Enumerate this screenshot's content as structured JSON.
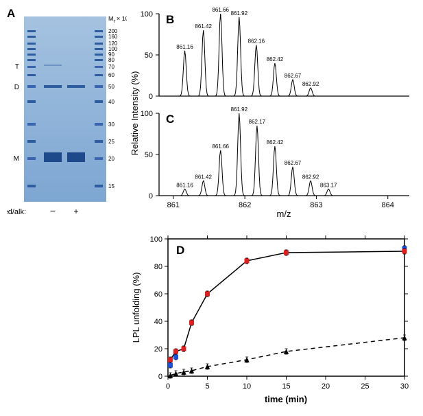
{
  "panelA": {
    "label": "A",
    "label_fontsize": 17,
    "mr_label": "M_r × 10⁻³",
    "mr_fontsize": 10,
    "ladder_values": [
      "200",
      "160",
      "120",
      "100",
      "90",
      "80",
      "70",
      "60",
      "50",
      "40",
      "30",
      "25",
      "20",
      "15"
    ],
    "side_labels": [
      "T",
      "D",
      "M"
    ],
    "redalk_label": "red/alk:",
    "redalk_values": [
      "−",
      "+"
    ],
    "gel_bg": "#87add6",
    "band_color": "#2e5d9f",
    "ladder_lane_color": "#3a65b0",
    "gel_width": 120,
    "gel_height": 265,
    "tick_fontsize": 8
  },
  "panelB": {
    "label": "B",
    "type": "mass-spectrum",
    "ylabel": "Relative Intensity (%)",
    "ylim": [
      0,
      100
    ],
    "yticks": [
      0,
      50,
      100
    ],
    "xlim": [
      860.8,
      864.3
    ],
    "peaks": [
      {
        "mz": 861.16,
        "intensity": 55,
        "label": "861.16"
      },
      {
        "mz": 861.42,
        "intensity": 80,
        "label": "861.42"
      },
      {
        "mz": 861.66,
        "intensity": 100,
        "label": "861.66"
      },
      {
        "mz": 861.92,
        "intensity": 96,
        "label": "861.92"
      },
      {
        "mz": 862.16,
        "intensity": 62,
        "label": "862.16"
      },
      {
        "mz": 862.42,
        "intensity": 40,
        "label": "862.42"
      },
      {
        "mz": 862.67,
        "intensity": 20,
        "label": "862.67"
      },
      {
        "mz": 862.92,
        "intensity": 10,
        "label": "862.92"
      }
    ],
    "line_color": "#000000",
    "label_fontsize": 8
  },
  "panelC": {
    "label": "C",
    "type": "mass-spectrum",
    "xlabel": "m/z",
    "ylim": [
      0,
      100
    ],
    "yticks": [
      0,
      50,
      100
    ],
    "xlim": [
      860.8,
      864.3
    ],
    "xticks": [
      861,
      862,
      863,
      864
    ],
    "peaks": [
      {
        "mz": 861.16,
        "intensity": 8,
        "label": "861.16"
      },
      {
        "mz": 861.42,
        "intensity": 18,
        "label": "861.42"
      },
      {
        "mz": 861.66,
        "intensity": 55,
        "label": "861.66"
      },
      {
        "mz": 861.92,
        "intensity": 100,
        "label": "861.92"
      },
      {
        "mz": 862.17,
        "intensity": 85,
        "label": "862.17"
      },
      {
        "mz": 862.42,
        "intensity": 60,
        "label": "862.42"
      },
      {
        "mz": 862.67,
        "intensity": 35,
        "label": "862.67"
      },
      {
        "mz": 862.92,
        "intensity": 18,
        "label": "862.92"
      },
      {
        "mz": 863.17,
        "intensity": 8,
        "label": "863.17"
      }
    ],
    "line_color": "#000000",
    "label_fontsize": 8
  },
  "panelD": {
    "label": "D",
    "type": "line",
    "ylabel": "LPL unfolding (%)",
    "xlabel": "time (min)",
    "xlim": [
      0,
      30
    ],
    "ylim": [
      0,
      100
    ],
    "xticks": [
      0,
      5,
      10,
      15,
      20,
      25,
      30
    ],
    "yticks": [
      0,
      20,
      40,
      60,
      80,
      100
    ],
    "series": [
      {
        "name": "blue-squares",
        "color": "#1a4fd6",
        "marker": "square",
        "marker_size": 6,
        "line_style": "none",
        "data": [
          [
            0.3,
            8
          ],
          [
            1,
            14
          ],
          [
            2,
            20
          ],
          [
            3,
            39
          ],
          [
            5,
            60
          ],
          [
            10,
            84
          ],
          [
            15,
            90
          ],
          [
            30,
            93
          ]
        ]
      },
      {
        "name": "red-squares",
        "color": "#e02020",
        "marker": "square",
        "marker_size": 6,
        "line_style": "solid",
        "line_color": "#000000",
        "data": [
          [
            0.3,
            12
          ],
          [
            1,
            18
          ],
          [
            2,
            20
          ],
          [
            3,
            39
          ],
          [
            5,
            60
          ],
          [
            10,
            84
          ],
          [
            15,
            90
          ],
          [
            30,
            91
          ]
        ]
      },
      {
        "name": "black-triangles",
        "color": "#000000",
        "marker": "triangle",
        "marker_size": 6,
        "line_style": "dashed",
        "line_color": "#000000",
        "data": [
          [
            0.3,
            0.5
          ],
          [
            1,
            2
          ],
          [
            2,
            3
          ],
          [
            3,
            4
          ],
          [
            5,
            7
          ],
          [
            10,
            12
          ],
          [
            15,
            18
          ],
          [
            30,
            28
          ]
        ]
      }
    ],
    "axis_fontsize": 12,
    "tick_fontsize": 11,
    "background_color": "#ffffff",
    "axis_color": "#000000"
  },
  "layout": {
    "total_width": 597,
    "total_height": 586
  }
}
